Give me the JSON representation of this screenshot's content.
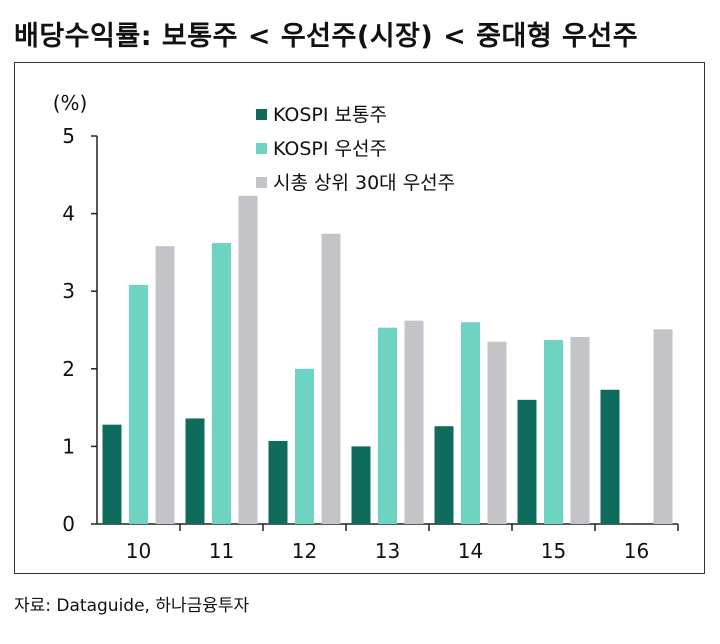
{
  "title": "배당수익률: 보통주 < 우선주(시장) < 중대형 우선주",
  "source": "자료: Dataguide, 하나금융투자",
  "chart_data": {
    "type": "bar",
    "title": "배당수익률: 보통주 < 우선주(시장) < 중대형 우선주",
    "ylabel": "(%)",
    "xlabel": "",
    "ylim": [
      0,
      5
    ],
    "yticks": [
      0,
      1,
      2,
      3,
      4,
      5
    ],
    "grid": false,
    "legend_position": "top-center",
    "categories": [
      "10",
      "11",
      "12",
      "13",
      "14",
      "15",
      "16"
    ],
    "series": [
      {
        "name": "KOSPI 보통주",
        "color": "#0f6b5c",
        "values": [
          1.28,
          1.36,
          1.07,
          1.0,
          1.26,
          1.6,
          1.73
        ]
      },
      {
        "name": "KOSPI 우선주",
        "color": "#6fd3c2",
        "values": [
          3.08,
          3.62,
          2.0,
          2.53,
          2.6,
          2.37,
          null
        ]
      },
      {
        "name": "시총 상위 30대 우선주",
        "color": "#c3c3c8",
        "values": [
          3.58,
          4.23,
          3.74,
          2.62,
          2.35,
          2.41,
          2.51
        ]
      }
    ]
  }
}
